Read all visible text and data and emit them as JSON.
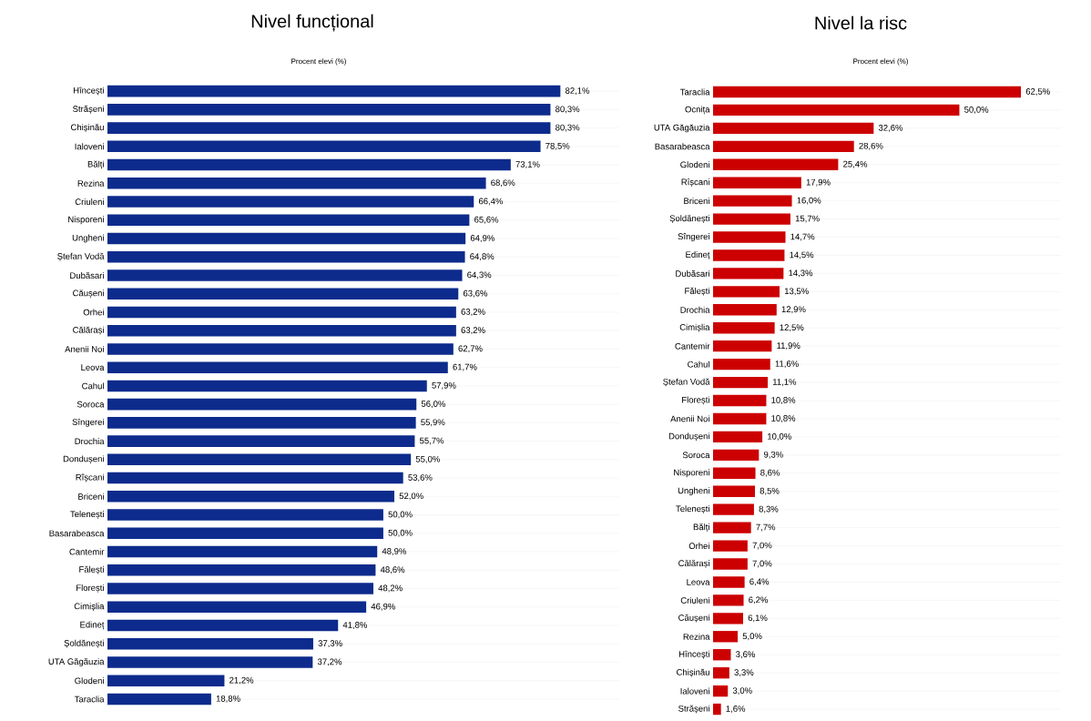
{
  "chart_data": [
    {
      "type": "bar",
      "orientation": "horizontal",
      "title": "Nivel funcțional",
      "xlabel": "Procent elevi (%)",
      "color": "#0d2b8c",
      "grid": "y",
      "categories": [
        "Hîncești",
        "Strășeni",
        "Chișinău",
        "Ialoveni",
        "Bălți",
        "Rezina",
        "Criuleni",
        "Nisporeni",
        "Ungheni",
        "Ștefan Vodă",
        "Dubăsari",
        "Căușeni",
        "Orhei",
        "Călărași",
        "Anenii Noi",
        "Leova",
        "Cahul",
        "Soroca",
        "Sîngerei",
        "Drochia",
        "Dondușeni",
        "Rîșcani",
        "Briceni",
        "Telenești",
        "Basarabeasca",
        "Cantemir",
        "Fălești",
        "Florești",
        "Cimișlia",
        "Edineț",
        "Șoldănești",
        "UTA Găgăuzia",
        "Glodeni",
        "Taraclia"
      ],
      "values": [
        82.1,
        80.3,
        80.3,
        78.5,
        73.1,
        68.6,
        66.4,
        65.6,
        64.9,
        64.8,
        64.3,
        63.6,
        63.2,
        63.2,
        62.7,
        61.7,
        57.9,
        56.0,
        55.9,
        55.7,
        55.0,
        53.6,
        52.0,
        50.0,
        50.0,
        48.9,
        48.6,
        48.2,
        46.9,
        41.8,
        37.3,
        37.2,
        21.2,
        18.8
      ],
      "value_labels": [
        "82,1%",
        "80,3%",
        "80,3%",
        "78,5%",
        "73,1%",
        "68,6%",
        "66,4%",
        "65,6%",
        "64,9%",
        "64,8%",
        "64,3%",
        "63,6%",
        "63,2%",
        "63,2%",
        "62,7%",
        "61,7%",
        "57,9%",
        "56,0%",
        "55,9%",
        "55,7%",
        "55,0%",
        "53,6%",
        "52,0%",
        "50,0%",
        "50,0%",
        "48,9%",
        "48,6%",
        "48,2%",
        "46,9%",
        "41,8%",
        "37,3%",
        "37,2%",
        "21,2%",
        "18,8%"
      ]
    },
    {
      "type": "bar",
      "orientation": "horizontal",
      "title": "Nivel la risc",
      "xlabel": "Procent elevi (%)",
      "color": "#cc0000",
      "grid": "y",
      "categories": [
        "Taraclia",
        "Ocnița",
        "UTA Găgăuzia",
        "Basarabeasca",
        "Glodeni",
        "Rîșcani",
        "Briceni",
        "Șoldănești",
        "Sîngerei",
        "Edineț",
        "Dubăsari",
        "Fălești",
        "Drochia",
        "Cimișlia",
        "Cantemir",
        "Cahul",
        "Ștefan Vodă",
        "Florești",
        "Anenii Noi",
        "Dondușeni",
        "Soroca",
        "Nisporeni",
        "Ungheni",
        "Telenești",
        "Bălți",
        "Orhei",
        "Călărași",
        "Leova",
        "Criuleni",
        "Căușeni",
        "Rezina",
        "Hîncești",
        "Chișinău",
        "Ialoveni",
        "Strășeni"
      ],
      "values": [
        62.5,
        50.0,
        32.6,
        28.6,
        25.4,
        17.9,
        16.0,
        15.7,
        14.7,
        14.5,
        14.3,
        13.5,
        12.9,
        12.5,
        11.9,
        11.6,
        11.1,
        10.8,
        10.8,
        10.0,
        9.3,
        8.6,
        8.5,
        8.3,
        7.7,
        7.0,
        7.0,
        6.4,
        6.2,
        6.1,
        5.0,
        3.6,
        3.3,
        3.0,
        1.6
      ],
      "value_labels": [
        "62,5%",
        "50,0%",
        "32,6%",
        "28,6%",
        "25,4%",
        "17,9%",
        "16,0%",
        "15,7%",
        "14,7%",
        "14,5%",
        "14,3%",
        "13,5%",
        "12,9%",
        "12,5%",
        "11,9%",
        "11,6%",
        "11,1%",
        "10,8%",
        "10,8%",
        "10,0%",
        "9,3%",
        "8,6%",
        "8,5%",
        "8,3%",
        "7,7%",
        "7,0%",
        "7,0%",
        "6,4%",
        "6,2%",
        "6,1%",
        "5,0%",
        "3,6%",
        "3,3%",
        "3,0%",
        "1,6%"
      ]
    }
  ]
}
